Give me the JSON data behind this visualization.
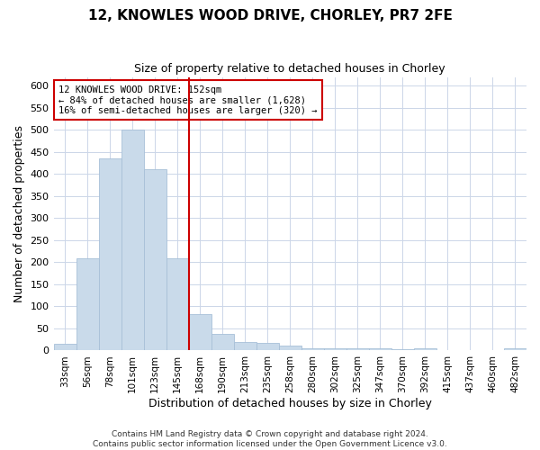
{
  "title_line1": "12, KNOWLES WOOD DRIVE, CHORLEY, PR7 2FE",
  "title_line2": "Size of property relative to detached houses in Chorley",
  "xlabel": "Distribution of detached houses by size in Chorley",
  "ylabel": "Number of detached properties",
  "bar_labels": [
    "33sqm",
    "56sqm",
    "78sqm",
    "101sqm",
    "123sqm",
    "145sqm",
    "168sqm",
    "190sqm",
    "213sqm",
    "235sqm",
    "258sqm",
    "280sqm",
    "302sqm",
    "325sqm",
    "347sqm",
    "370sqm",
    "392sqm",
    "415sqm",
    "437sqm",
    "460sqm",
    "482sqm"
  ],
  "bar_values": [
    15,
    210,
    435,
    500,
    410,
    210,
    83,
    38,
    20,
    17,
    12,
    5,
    5,
    5,
    5,
    2,
    5,
    0,
    0,
    0,
    5
  ],
  "bar_color": "#c9daea",
  "bar_edgecolor": "#a8c0d8",
  "vline_color": "#cc0000",
  "vline_index": 5.5,
  "annotation_text": "12 KNOWLES WOOD DRIVE: 152sqm\n← 84% of detached houses are smaller (1,628)\n16% of semi-detached houses are larger (320) →",
  "annotation_box_color": "#ffffff",
  "annotation_box_edgecolor": "#cc0000",
  "ylim": [
    0,
    620
  ],
  "yticks": [
    0,
    50,
    100,
    150,
    200,
    250,
    300,
    350,
    400,
    450,
    500,
    550,
    600
  ],
  "footer_line1": "Contains HM Land Registry data © Crown copyright and database right 2024.",
  "footer_line2": "Contains public sector information licensed under the Open Government Licence v3.0.",
  "background_color": "#ffffff",
  "grid_color": "#ccd6e8",
  "fig_width": 6.0,
  "fig_height": 5.0,
  "dpi": 100
}
